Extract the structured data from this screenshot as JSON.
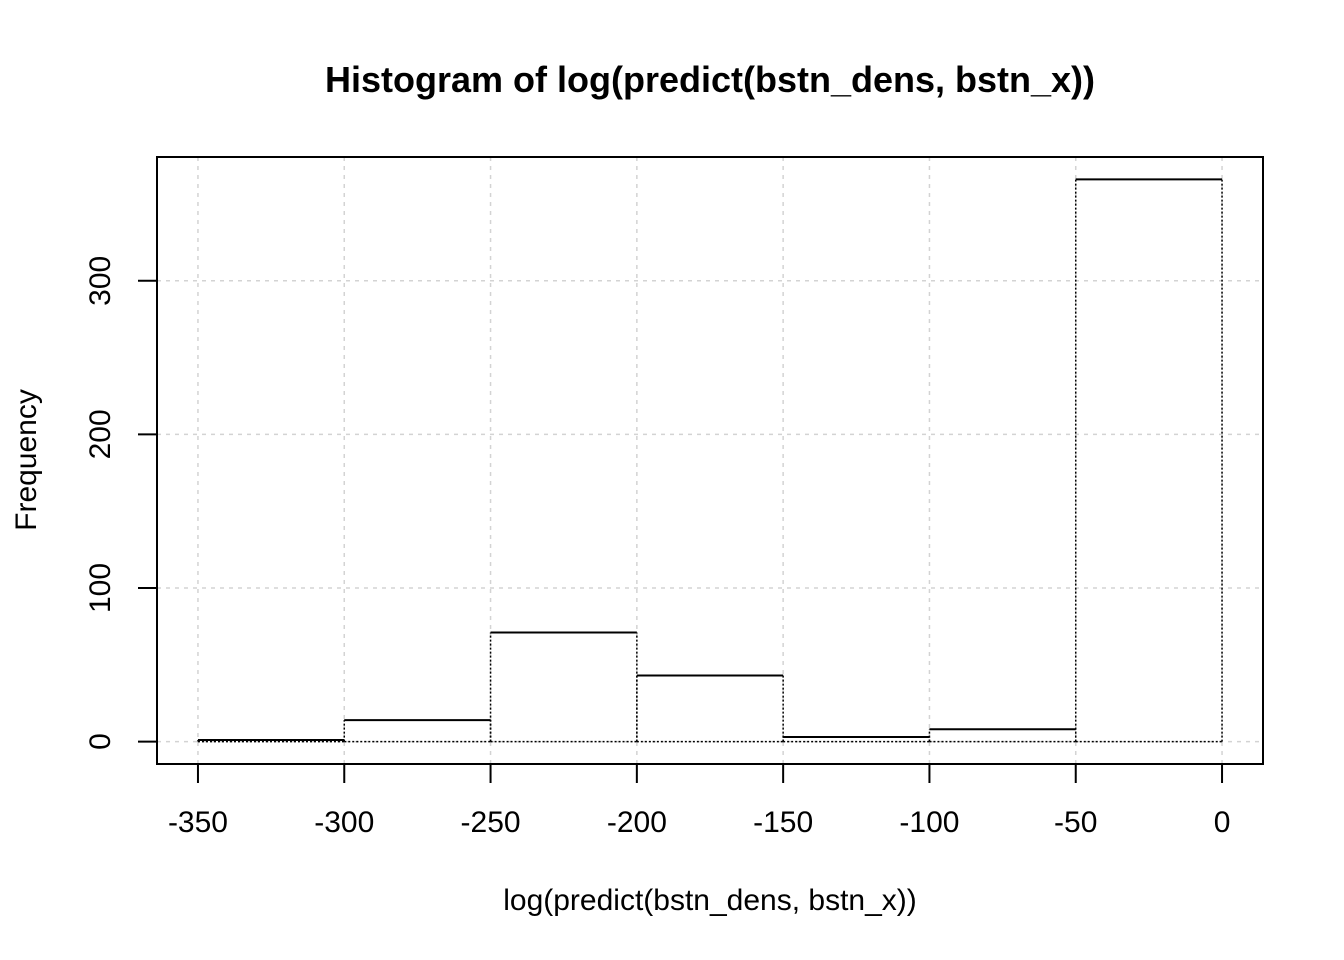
{
  "chart_data": {
    "type": "bar",
    "title": "Histogram of log(predict(bstn_dens, bstn_x))",
    "xlabel": "log(predict(bstn_dens, bstn_x))",
    "ylabel": "Frequency",
    "bins": [
      {
        "x0": -350,
        "x1": -300,
        "count": 1
      },
      {
        "x0": -300,
        "x1": -250,
        "count": 14
      },
      {
        "x0": -250,
        "x1": -200,
        "count": 71
      },
      {
        "x0": -200,
        "x1": -150,
        "count": 43
      },
      {
        "x0": -150,
        "x1": -100,
        "count": 3
      },
      {
        "x0": -100,
        "x1": -50,
        "count": 8
      },
      {
        "x0": -50,
        "x1": 0,
        "count": 366
      }
    ],
    "xlim": [
      -364,
      14
    ],
    "ylim": [
      -14.6,
      380.6
    ],
    "xticks": [
      -350,
      -300,
      -250,
      -200,
      -150,
      -100,
      -50,
      0
    ],
    "xtick_labels": [
      "-350",
      "-300",
      "-250",
      "-200",
      "-150",
      "-100",
      "-50",
      "0"
    ],
    "yticks": [
      0,
      100,
      200,
      300
    ],
    "ytick_labels": [
      "0",
      "100",
      "200",
      "300"
    ],
    "grid": true,
    "grid_color": "#d3d3d3",
    "bar_outline_color": "#000000",
    "bar_fill": "none"
  }
}
